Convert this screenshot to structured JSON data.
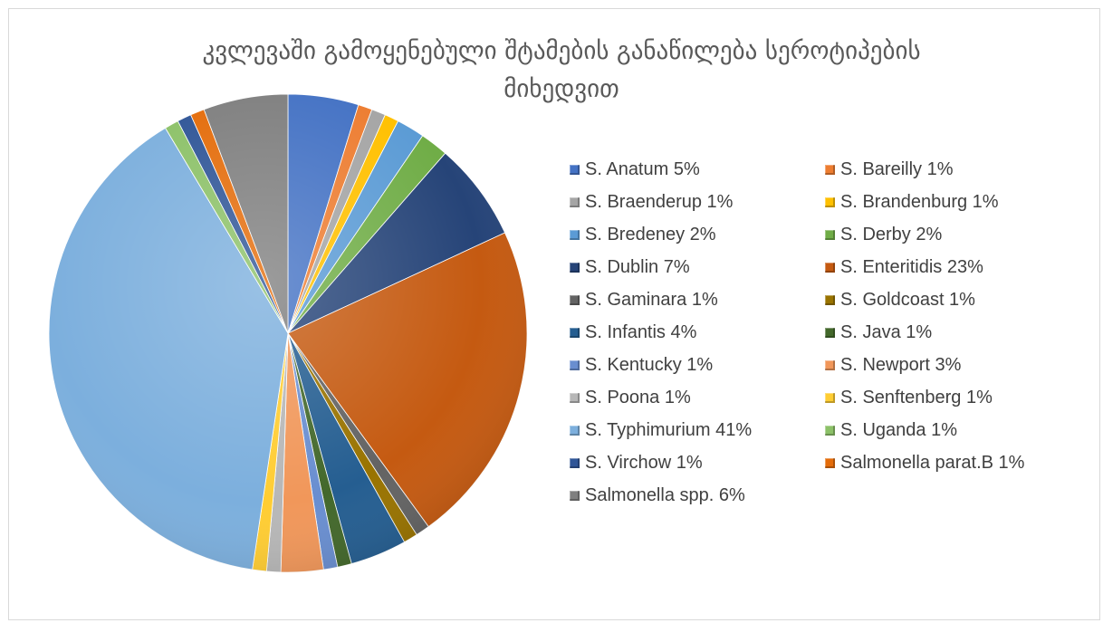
{
  "chart_data": {
    "type": "pie",
    "title_line1": "კვლევაში გამოყენებული შტამების განაწილება სეროტიპების",
    "title_line2": "მიხედვით",
    "legend_placement": "right",
    "slices": [
      {
        "label": "S. Anatum 5%",
        "value": 5,
        "color": "#4472c4"
      },
      {
        "label": "S. Bareilly 1%",
        "value": 1,
        "color": "#ed7d31"
      },
      {
        "label": "S. Braenderup  1%",
        "value": 1,
        "color": "#a5a5a5"
      },
      {
        "label": "S. Brandenburg  1%",
        "value": 1,
        "color": "#ffc000"
      },
      {
        "label": "S. Bredeney  2%",
        "value": 2,
        "color": "#5b9bd5"
      },
      {
        "label": "S. Derby  2%",
        "value": 2,
        "color": "#70ad47"
      },
      {
        "label": "S. Dublin  7%",
        "value": 7,
        "color": "#264478"
      },
      {
        "label": "S. Enteritidis  23%",
        "value": 23,
        "color": "#c55a11"
      },
      {
        "label": "S. Gaminara  1%",
        "value": 1,
        "color": "#636363"
      },
      {
        "label": "S. Goldcoast  1%",
        "value": 1,
        "color": "#997300"
      },
      {
        "label": "S. Infantis  4%",
        "value": 4,
        "color": "#255e91"
      },
      {
        "label": "S. Java  1%",
        "value": 1,
        "color": "#43682b"
      },
      {
        "label": "S. Kentucky  1%",
        "value": 1,
        "color": "#698ed0"
      },
      {
        "label": "S. Newport  3%",
        "value": 3,
        "color": "#f1975a"
      },
      {
        "label": "S. Poona  1%",
        "value": 1,
        "color": "#b7b7b7"
      },
      {
        "label": "S. Senftenberg  1%",
        "value": 1,
        "color": "#ffcd33"
      },
      {
        "label": "S. Typhimurium   41%",
        "value": 41,
        "color": "#7cafdd"
      },
      {
        "label": "S. Uganda  1%",
        "value": 1,
        "color": "#8cc168"
      },
      {
        "label": "S. Virchow  1%",
        "value": 1,
        "color": "#2f5597"
      },
      {
        "label": "Salmonella parat.B  1%",
        "value": 1,
        "color": "#e46c0a"
      },
      {
        "label": "Salmonella spp.  6%",
        "value": 6,
        "color": "#7f7f7f"
      }
    ]
  }
}
